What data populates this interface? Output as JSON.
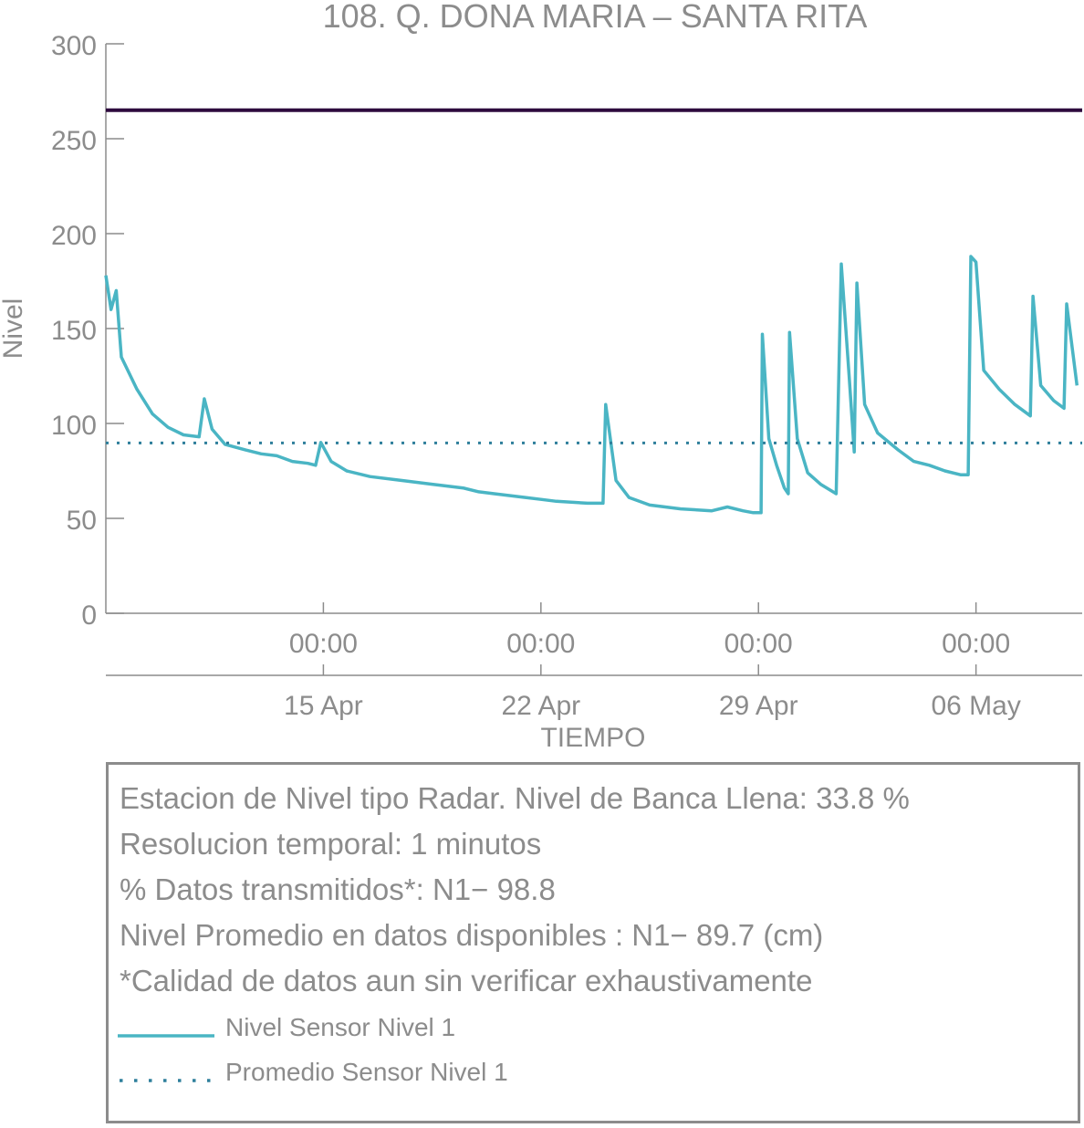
{
  "chart_data": {
    "type": "line",
    "title": "108. Q. DONA MARIA – SANTA RITA",
    "xlabel": "TIEMPO",
    "ylabel": "Nivel",
    "ylim": [
      0,
      300
    ],
    "xlim": [
      "2024-04-08 00:00",
      "2024-05-09 10:00"
    ],
    "y_ticks": [
      0,
      50,
      100,
      150,
      200,
      250,
      300
    ],
    "x_time_ticks": [
      {
        "x": "2024-04-15 00:00",
        "label": "00:00"
      },
      {
        "x": "2024-04-22 00:00",
        "label": "00:00"
      },
      {
        "x": "2024-04-29 00:00",
        "label": "00:00"
      },
      {
        "x": "2024-05-06 00:00",
        "label": "00:00"
      }
    ],
    "x_date_ticks": [
      {
        "x": "2024-04-15 00:00",
        "label": "15 Apr"
      },
      {
        "x": "2024-04-22 00:00",
        "label": "22 Apr"
      },
      {
        "x": "2024-04-29 00:00",
        "label": "29 Apr"
      },
      {
        "x": "2024-05-06 00:00",
        "label": "06 May"
      }
    ],
    "grid": false,
    "reference_line": {
      "y": 265,
      "color": "#2e0a3e"
    },
    "series": [
      {
        "name": "Nivel Sensor Nivel 1",
        "color": "#4ab5c4",
        "style": "solid",
        "points": [
          [
            "2024-04-08 00:00",
            178
          ],
          [
            "2024-04-08 04:00",
            160
          ],
          [
            "2024-04-08 08:00",
            170
          ],
          [
            "2024-04-08 12:00",
            135
          ],
          [
            "2024-04-09 00:00",
            118
          ],
          [
            "2024-04-09 12:00",
            105
          ],
          [
            "2024-04-10 00:00",
            98
          ],
          [
            "2024-04-10 12:00",
            94
          ],
          [
            "2024-04-11 00:00",
            93
          ],
          [
            "2024-04-11 04:00",
            113
          ],
          [
            "2024-04-11 10:00",
            97
          ],
          [
            "2024-04-11 20:00",
            89
          ],
          [
            "2024-04-12 12:00",
            86
          ],
          [
            "2024-04-13 00:00",
            84
          ],
          [
            "2024-04-13 12:00",
            83
          ],
          [
            "2024-04-14 00:00",
            80
          ],
          [
            "2024-04-14 12:00",
            79
          ],
          [
            "2024-04-14 18:00",
            78
          ],
          [
            "2024-04-14 22:00",
            90
          ],
          [
            "2024-04-15 06:00",
            80
          ],
          [
            "2024-04-15 18:00",
            75
          ],
          [
            "2024-04-16 12:00",
            72
          ],
          [
            "2024-04-17 12:00",
            70
          ],
          [
            "2024-04-18 12:00",
            68
          ],
          [
            "2024-04-19 12:00",
            66
          ],
          [
            "2024-04-20 00:00",
            64
          ],
          [
            "2024-04-20 12:00",
            63
          ],
          [
            "2024-04-21 12:00",
            61
          ],
          [
            "2024-04-22 00:00",
            60
          ],
          [
            "2024-04-22 12:00",
            59
          ],
          [
            "2024-04-23 12:00",
            58
          ],
          [
            "2024-04-24 00:00",
            58
          ],
          [
            "2024-04-24 02:00",
            110
          ],
          [
            "2024-04-24 10:00",
            70
          ],
          [
            "2024-04-24 20:00",
            61
          ],
          [
            "2024-04-25 12:00",
            57
          ],
          [
            "2024-04-26 12:00",
            55
          ],
          [
            "2024-04-27 12:00",
            54
          ],
          [
            "2024-04-28 00:00",
            56
          ],
          [
            "2024-04-28 12:00",
            54
          ],
          [
            "2024-04-28 20:00",
            53
          ],
          [
            "2024-04-29 02:00",
            53
          ],
          [
            "2024-04-29 03:00",
            147
          ],
          [
            "2024-04-29 08:00",
            92
          ],
          [
            "2024-04-29 14:00",
            78
          ],
          [
            "2024-04-29 20:00",
            66
          ],
          [
            "2024-04-29 23:00",
            63
          ],
          [
            "2024-04-30 00:00",
            148
          ],
          [
            "2024-04-30 06:00",
            92
          ],
          [
            "2024-04-30 14:00",
            74
          ],
          [
            "2024-05-01 00:00",
            68
          ],
          [
            "2024-05-01 12:00",
            63
          ],
          [
            "2024-05-01 16:00",
            184
          ],
          [
            "2024-05-01 22:00",
            125
          ],
          [
            "2024-05-02 02:00",
            85
          ],
          [
            "2024-05-02 04:00",
            174
          ],
          [
            "2024-05-02 10:00",
            110
          ],
          [
            "2024-05-02 20:00",
            95
          ],
          [
            "2024-05-03 12:00",
            86
          ],
          [
            "2024-05-04 00:00",
            80
          ],
          [
            "2024-05-04 12:00",
            78
          ],
          [
            "2024-05-05 00:00",
            75
          ],
          [
            "2024-05-05 12:00",
            73
          ],
          [
            "2024-05-05 18:00",
            73
          ],
          [
            "2024-05-05 20:00",
            188
          ],
          [
            "2024-05-06 00:00",
            185
          ],
          [
            "2024-05-06 06:00",
            128
          ],
          [
            "2024-05-06 18:00",
            118
          ],
          [
            "2024-05-07 06:00",
            110
          ],
          [
            "2024-05-07 18:00",
            104
          ],
          [
            "2024-05-07 20:00",
            167
          ],
          [
            "2024-05-08 02:00",
            120
          ],
          [
            "2024-05-08 12:00",
            112
          ],
          [
            "2024-05-08 20:00",
            108
          ],
          [
            "2024-05-08 22:00",
            163
          ],
          [
            "2024-05-09 06:00",
            120
          ]
        ]
      },
      {
        "name": "Promedio Sensor Nivel 1",
        "color": "#2e7f9b",
        "style": "dotted",
        "points": [
          [
            "2024-04-08 00:00",
            89.7
          ],
          [
            "2024-05-09 10:00",
            89.7
          ]
        ]
      }
    ],
    "legend": "bottom"
  },
  "info_panel": {
    "lines": [
      "Estacion de Nivel tipo Radar. Nivel de Banca Llena: 33.8 %",
      "Resolucion temporal: 1 minutos",
      "% Datos transmitidos*: N1− 98.8",
      "Nivel Promedio en datos disponibles : N1− 89.7 (cm)",
      "*Calidad de datos aun sin verificar exhaustivamente"
    ],
    "legend": [
      {
        "label": "Nivel Sensor Nivel 1",
        "color": "#4ab5c4",
        "style": "solid"
      },
      {
        "label": "Promedio Sensor Nivel 1",
        "color": "#2e7f9b",
        "style": "dotted"
      }
    ]
  }
}
